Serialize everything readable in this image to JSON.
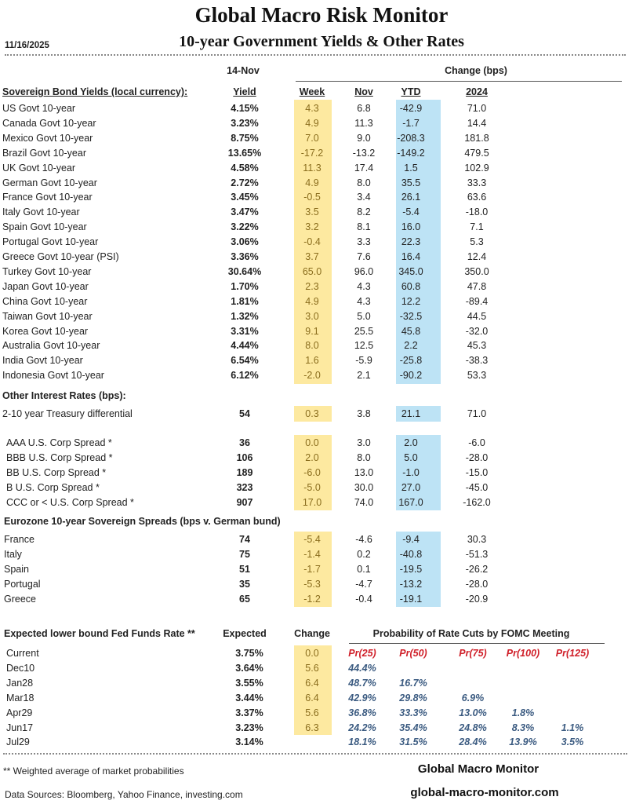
{
  "header": {
    "title": "Global Macro Risk Monitor",
    "subtitle": "10-year Government Yields & Other Rates",
    "date": "11/16/2025",
    "as_of": "14-Nov",
    "change_label": "Change (bps)"
  },
  "columns": {
    "section": "Sovereign Bond Yields (local currency):",
    "yield": "Yield",
    "week": "Week",
    "nov": "Nov",
    "ytd": "YTD",
    "y2024": "2024"
  },
  "sovereign": [
    [
      "US Govt 10-year",
      "4.15%",
      "4.3",
      "6.8",
      "-42.9",
      "71.0"
    ],
    [
      "Canada Govt 10-year",
      "3.23%",
      "4.9",
      "11.3",
      "-1.7",
      "14.4"
    ],
    [
      "Mexico Govt 10-year",
      "8.75%",
      "7.0",
      "9.0",
      "-208.3",
      "181.8"
    ],
    [
      "Brazil Govt 10-year",
      "13.65%",
      "-17.2",
      "-13.2",
      "-149.2",
      "479.5"
    ],
    [
      "UK Govt 10-year",
      "4.58%",
      "11.3",
      "17.4",
      "1.5",
      "102.9"
    ],
    [
      "German Govt 10-year",
      "2.72%",
      "4.9",
      "8.0",
      "35.5",
      "33.3"
    ],
    [
      "France Govt 10-year",
      "3.45%",
      "-0.5",
      "3.4",
      "26.1",
      "63.6"
    ],
    [
      "Italy Govt 10-year",
      "3.47%",
      "3.5",
      "8.2",
      "-5.4",
      "-18.0"
    ],
    [
      "Spain Govt 10-year",
      "3.22%",
      "3.2",
      "8.1",
      "16.0",
      "7.1"
    ],
    [
      "Portugal Govt 10-year",
      "3.06%",
      "-0.4",
      "3.3",
      "22.3",
      "5.3"
    ],
    [
      "Greece Govt 10-year (PSI)",
      "3.36%",
      "3.7",
      "7.6",
      "16.4",
      "12.4"
    ],
    [
      "Turkey Govt 10-year",
      "30.64%",
      "65.0",
      "96.0",
      "345.0",
      "350.0"
    ],
    [
      "Japan Govt 10-year",
      "1.70%",
      "2.3",
      "4.3",
      "60.8",
      "47.8"
    ],
    [
      "China Govt 10-year",
      "1.81%",
      "4.9",
      "4.3",
      "12.2",
      "-89.4"
    ],
    [
      "Taiwan Govt 10-year",
      "1.32%",
      "3.0",
      "5.0",
      "-32.5",
      "44.5"
    ],
    [
      "Korea Govt 10-year",
      "3.31%",
      "9.1",
      "25.5",
      "45.8",
      "-32.0"
    ],
    [
      "Australia Govt 10-year",
      "4.44%",
      "8.0",
      "12.5",
      "2.2",
      "45.3"
    ],
    [
      "India Govt 10-year",
      "6.54%",
      "1.6",
      "-5.9",
      "-25.8",
      "-38.3"
    ],
    [
      "Indonesia Govt 10-year",
      "6.12%",
      "-2.0",
      "2.1",
      "-90.2",
      "53.3"
    ]
  ],
  "other_rates": {
    "title": "Other Interest Rates  (bps):",
    "treasury": [
      "2-10 year Treasury differential",
      "54",
      "0.3",
      "3.8",
      "21.1",
      "71.0"
    ],
    "corp": [
      [
        "AAA U.S. Corp Spread *",
        "36",
        "0.0",
        "3.0",
        "2.0",
        "-6.0"
      ],
      [
        "BBB U.S. Corp Spread *",
        "106",
        "2.0",
        "8.0",
        "5.0",
        "-28.0"
      ],
      [
        "BB U.S. Corp Spread *",
        "189",
        "-6.0",
        "13.0",
        "-1.0",
        "-15.0"
      ],
      [
        "B U.S. Corp Spread *",
        "323",
        "-5.0",
        "30.0",
        "27.0",
        "-45.0"
      ],
      [
        "CCC or < U.S. Corp Spread *",
        "907",
        "17.0",
        "74.0",
        "167.0",
        "-162.0"
      ]
    ]
  },
  "eurozone": {
    "title": "Eurozone 10-year Sovereign Spreads (bps v. German bund)",
    "rows": [
      [
        "France",
        "74",
        "-5.4",
        "-4.6",
        "-9.4",
        "30.3"
      ],
      [
        "Italy",
        "75",
        "-1.4",
        "0.2",
        "-40.8",
        "-51.3"
      ],
      [
        "Spain",
        "51",
        "-1.7",
        "0.1",
        "-19.5",
        "-26.2"
      ],
      [
        "Portugal",
        "35",
        "-5.3",
        "-4.7",
        "-13.2",
        "-28.0"
      ],
      [
        "Greece",
        "65",
        "-1.2",
        "-0.4",
        "-19.1",
        "-20.9"
      ]
    ]
  },
  "fed": {
    "title": "Expected lower bound Fed Funds Rate **",
    "expected_label": "Expected",
    "change_label": "Change",
    "prob_title": "Probability of Rate Cuts by FOMC Meeting",
    "prob_headers": [
      "Pr(25)",
      "Pr(50)",
      "Pr(75)",
      "Pr(100)",
      "Pr(125)"
    ],
    "rows": [
      {
        "meeting": "Current",
        "expected": "3.75%",
        "change": "0.0",
        "probs": []
      },
      {
        "meeting": "Dec10",
        "expected": "3.64%",
        "change": "5.6",
        "probs": [
          "44.4%"
        ]
      },
      {
        "meeting": "Jan28",
        "expected": "3.55%",
        "change": "6.4",
        "probs": [
          "48.7%",
          "16.7%"
        ]
      },
      {
        "meeting": "Mar18",
        "expected": "3.44%",
        "change": "6.4",
        "probs": [
          "42.9%",
          "29.8%",
          "6.9%"
        ]
      },
      {
        "meeting": "Apr29",
        "expected": "3.37%",
        "change": "5.6",
        "probs": [
          "36.8%",
          "33.3%",
          "13.0%",
          "1.8%"
        ]
      },
      {
        "meeting": "Jun17",
        "expected": "3.23%",
        "change": "6.3",
        "probs": [
          "24.2%",
          "35.4%",
          "24.8%",
          "8.3%",
          "1.1%"
        ]
      },
      {
        "meeting": "Jul29",
        "expected": "3.14%",
        "change": "",
        "probs": [
          "18.1%",
          "31.5%",
          "28.4%",
          "13.9%",
          "3.5%"
        ]
      }
    ]
  },
  "footer": {
    "note": "** Weighted average of market probabilities",
    "sources": "Data Sources:  Bloomberg,  Yahoo Finance, investing.com",
    "brand": "Global Macro Monitor",
    "site": "global-macro-monitor.com"
  },
  "colors": {
    "week_highlight": "#fde9a0",
    "ytd_highlight": "#bde3f5",
    "prob_header": "#d0202a",
    "prob_value": "#3a5a80"
  }
}
